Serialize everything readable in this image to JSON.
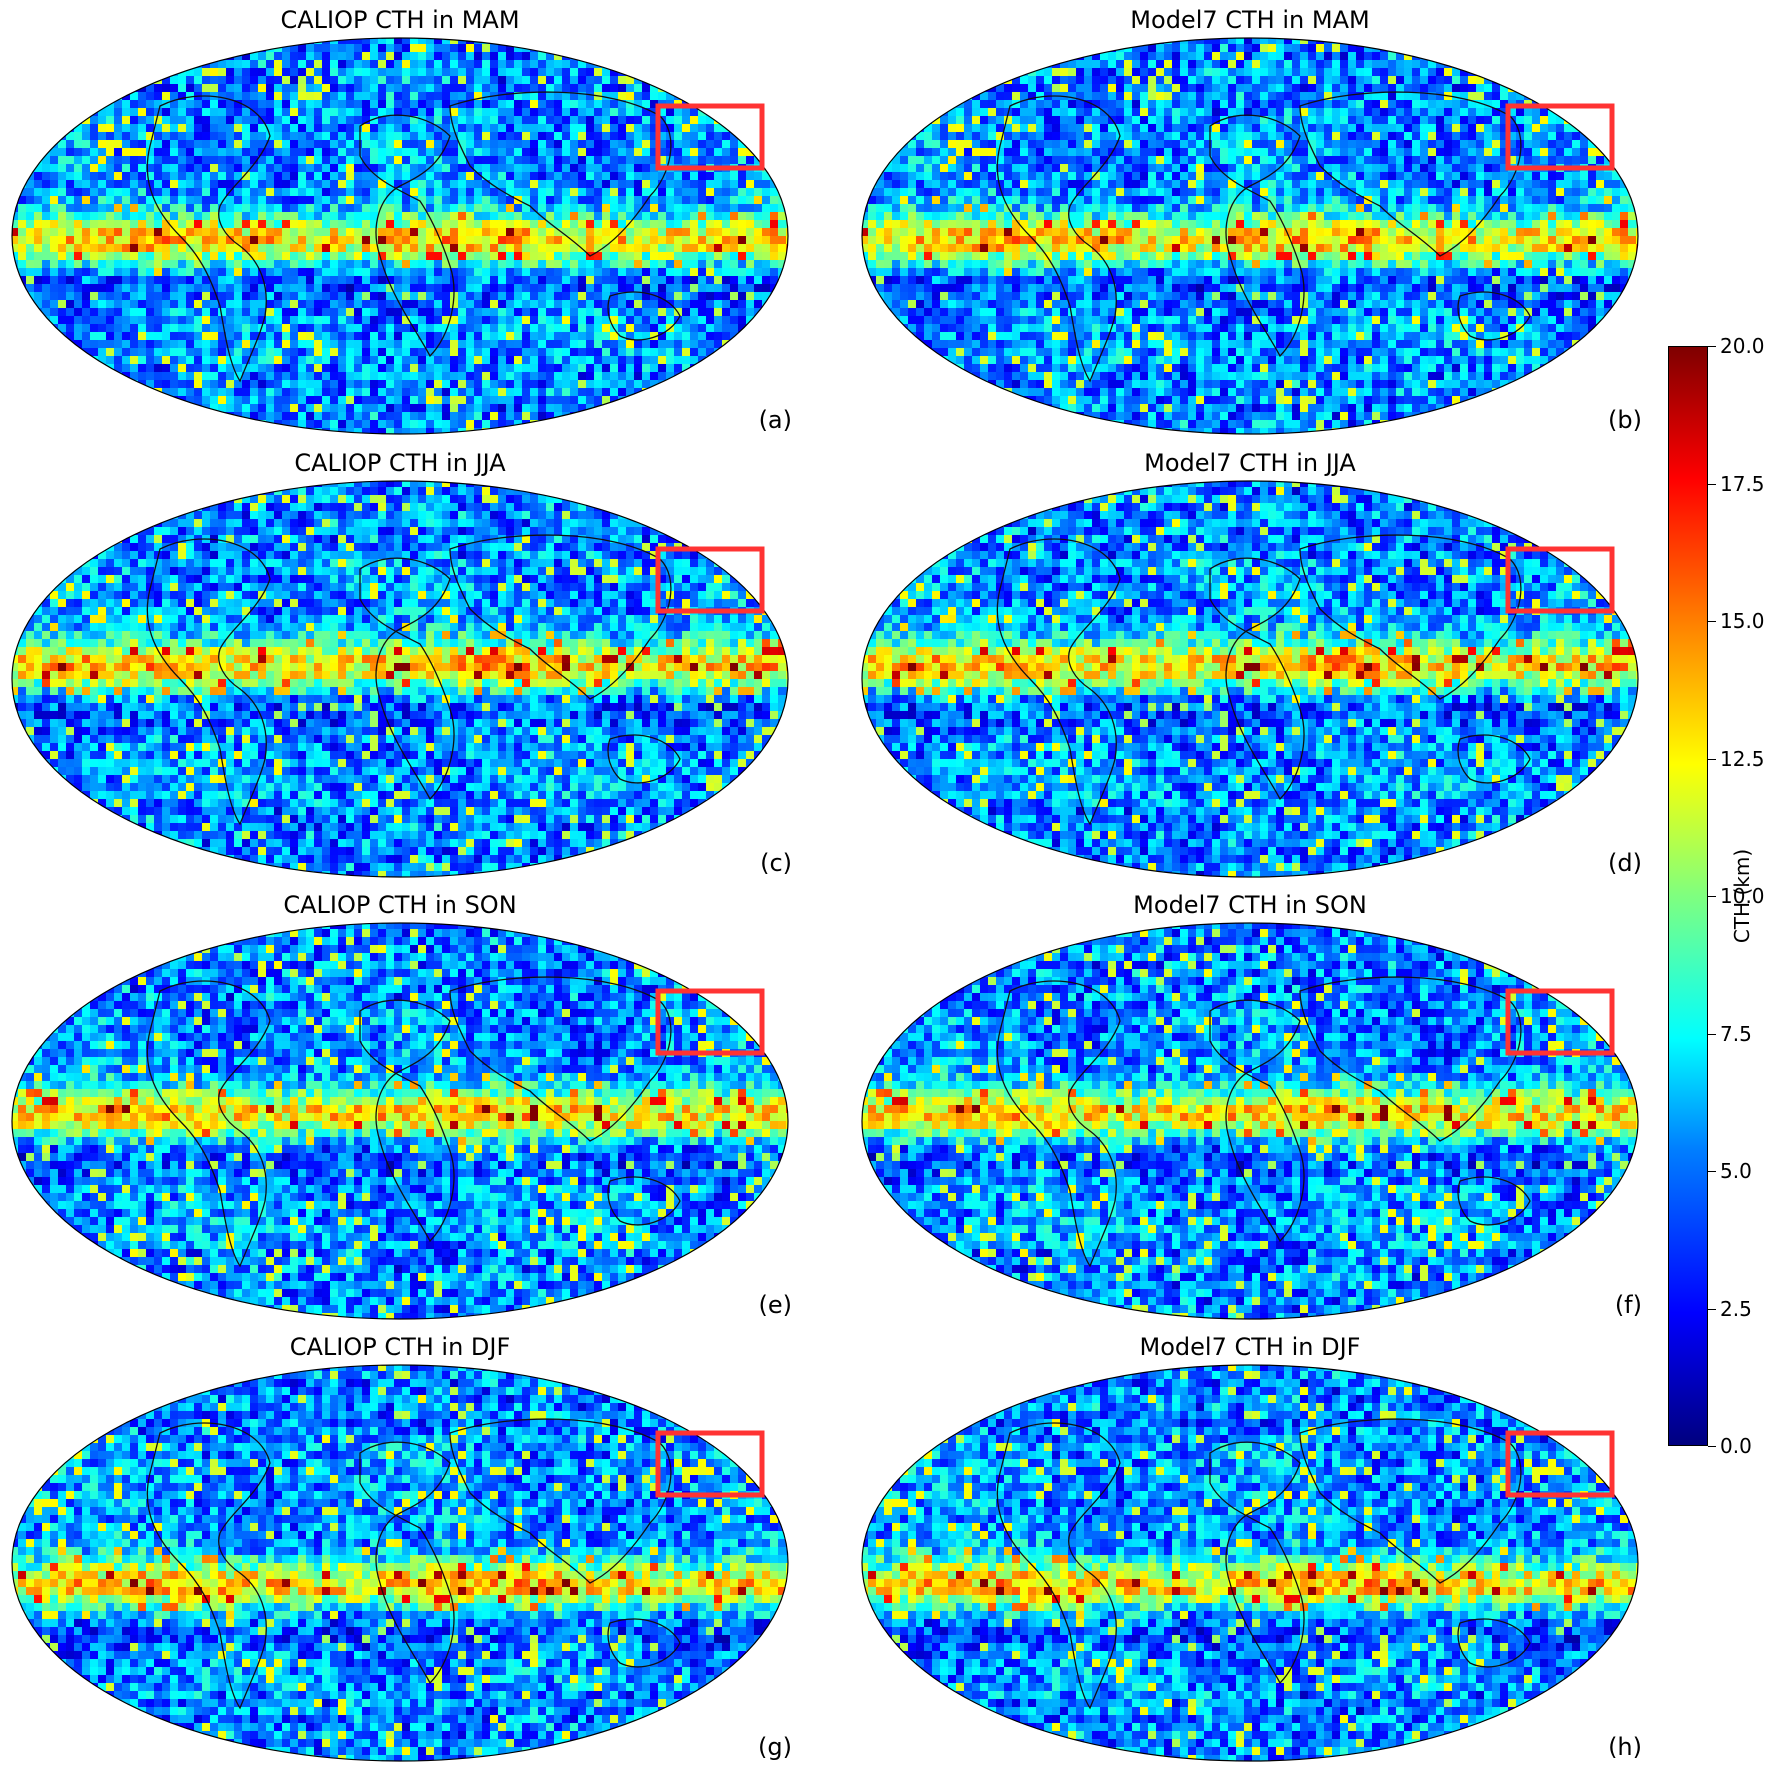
{
  "panels": [
    {
      "id": "a",
      "title": "CALIOP CTH in MAM",
      "label": "(a)",
      "season": "MAM"
    },
    {
      "id": "b",
      "title": "Model7 CTH in MAM",
      "label": "(b)",
      "season": "MAM"
    },
    {
      "id": "c",
      "title": "CALIOP CTH in JJA",
      "label": "(c)",
      "season": "JJA"
    },
    {
      "id": "d",
      "title": "Model7 CTH in JJA",
      "label": "(d)",
      "season": "JJA"
    },
    {
      "id": "e",
      "title": "CALIOP CTH in SON",
      "label": "(e)",
      "season": "SON"
    },
    {
      "id": "f",
      "title": "Model7 CTH in SON",
      "label": "(f)",
      "season": "SON"
    },
    {
      "id": "g",
      "title": "CALIOP CTH in DJF",
      "label": "(g)",
      "season": "DJF"
    },
    {
      "id": "h",
      "title": "Model7 CTH in DJF",
      "label": "(h)",
      "season": "DJF"
    }
  ],
  "colorbar": {
    "title": "CTH (km)",
    "ticks": [
      "0.0",
      "2.5",
      "5.0",
      "7.5",
      "10.0",
      "12.5",
      "15.0",
      "17.5",
      "20.0"
    ],
    "min": 0,
    "max": 20,
    "colormap": "jet"
  },
  "highlight_box_color": "#ff3333"
}
